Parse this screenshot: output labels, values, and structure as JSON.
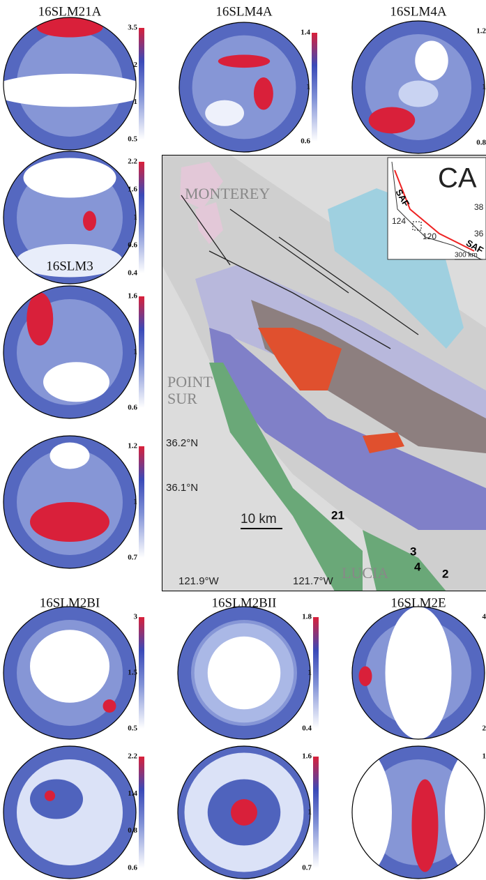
{
  "panels": [
    {
      "title": "16SLM21A",
      "scale": [
        "3.5",
        "2",
        "1",
        "0.5"
      ]
    },
    {
      "title": "16SLM4A",
      "scale": [
        "1.4",
        "1",
        "0.6"
      ]
    },
    {
      "title": "16SLM4A",
      "scale": [
        "1.2",
        "1",
        "0.8"
      ]
    },
    {
      "scale": [
        "2.2",
        "1.6",
        "1",
        "0.6",
        "0.4"
      ]
    },
    {
      "title": "16SLM3",
      "scale": [
        "1.6",
        "1",
        "0.6"
      ]
    },
    {
      "scale": [
        "1.2",
        "1",
        "0.7"
      ]
    },
    {
      "title": "16SLM2BI",
      "scale": [
        "3",
        "1.5",
        "0.5"
      ]
    },
    {
      "title": "16SLM2BII",
      "scale": [
        "1.8",
        "1",
        "0.4"
      ]
    },
    {
      "title": "16SLM2E",
      "scale": [
        "4",
        "2"
      ]
    },
    {
      "scale": [
        "2.2",
        "1.4",
        "0.8",
        "0.6"
      ]
    },
    {
      "scale": [
        "1.6",
        "1",
        "0.7"
      ]
    },
    {
      "scale": [
        "1"
      ]
    }
  ],
  "map": {
    "place_labels": [
      "MONTEREY",
      "POINT",
      "SUR",
      "LUCIA"
    ],
    "latitudes": [
      "36.2°N",
      "36.1°N"
    ],
    "longitudes": [
      "121.9°W",
      "121.7°W"
    ],
    "scale_bar": "10 km",
    "sites": [
      "21",
      "3",
      "4",
      "2"
    ],
    "inset": {
      "state": "CA",
      "fault_labels": [
        "SAF",
        "SAF"
      ],
      "coordinates": [
        "38",
        "36",
        "124",
        "120"
      ],
      "scale_bar": "300 km"
    }
  }
}
